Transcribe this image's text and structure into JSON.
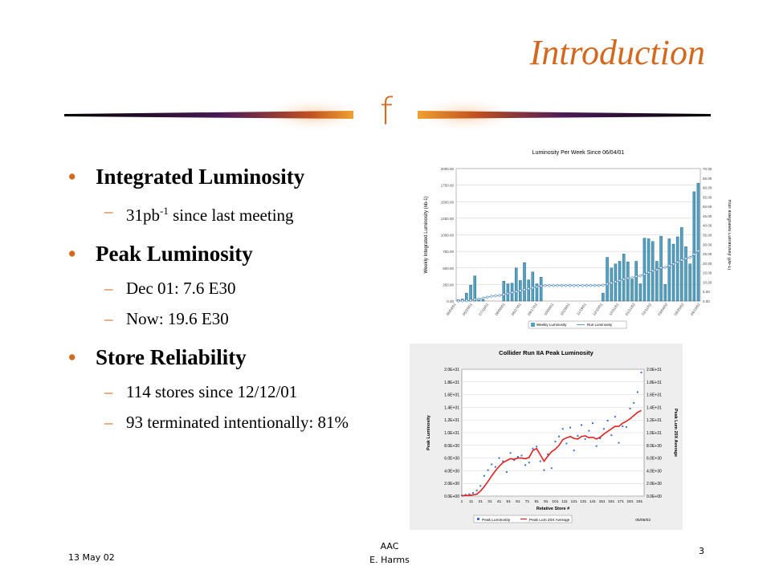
{
  "slide": {
    "title": "Introduction",
    "logo_glyph": "f",
    "bullets": [
      {
        "heading": "Integrated Luminosity",
        "subs": [
          {
            "pre": "31pb",
            "sup": "-1",
            "post": " since last meeting"
          }
        ]
      },
      {
        "heading": "Peak Luminosity",
        "subs": [
          {
            "pre": "Dec 01: 7.6 E30",
            "sup": "",
            "post": ""
          },
          {
            "pre": "Now: 19.6 E30",
            "sup": "",
            "post": ""
          }
        ]
      },
      {
        "heading": "Store Reliability",
        "subs": [
          {
            "pre": "114 stores since 12/12/01",
            "sup": "",
            "post": ""
          },
          {
            "pre": "93 terminated intentionally: 81%",
            "sup": "",
            "post": ""
          }
        ]
      }
    ],
    "footer": {
      "date": "13 May 02",
      "center_line1": "AAC",
      "center_line2": "E. Harms",
      "page": "3"
    },
    "colors": {
      "accent": "#d2691e",
      "bar_fill": "#4fa3c7",
      "run_line": "#3c7fbf",
      "peak_points": "#3b6fd6",
      "avg_line": "#e02020"
    }
  },
  "chart_data": [
    {
      "type": "bar",
      "title": "Luminosity Per Week Since 06/04/01",
      "ylabel": "Weekly Integrated Luminosity (nb-1)",
      "y2label": "Run Integrated Luminosity (pb-1)",
      "ylim": [
        0,
        2000
      ],
      "y2lim": [
        0,
        70
      ],
      "yticks": [
        "0.00",
        "250.00",
        "500.00",
        "750.00",
        "1000.00",
        "1250.00",
        "1500.00",
        "1750.00",
        "2000.00"
      ],
      "y2ticks": [
        "0.00",
        "5.00",
        "10.00",
        "15.00",
        "20.00",
        "25.00",
        "30.00",
        "35.00",
        "40.00",
        "45.00",
        "50.00",
        "55.00",
        "60.00",
        "65.00",
        "70.00"
      ],
      "xticks": [
        "06/04/01",
        "06/25/01",
        "07/16/01",
        "08/06/01",
        "08/27/01",
        "09/17/01",
        "10/08/01",
        "10/29/01",
        "11/19/01",
        "12/10/01",
        "12/31/01",
        "01/21/02",
        "02/11/02",
        "03/04/02",
        "03/25/02",
        "04/15/02"
      ],
      "legend": [
        "Weekly Luminosity",
        "Run Luminosity"
      ],
      "series": [
        {
          "name": "Weekly Luminosity",
          "values": [
            20,
            30,
            120,
            240,
            380,
            40,
            20,
            0,
            0,
            0,
            0,
            300,
            260,
            270,
            500,
            310,
            580,
            320,
            440,
            260,
            360,
            0,
            0,
            0,
            0,
            0,
            0,
            0,
            0,
            0,
            0,
            0,
            0,
            0,
            0,
            120,
            660,
            500,
            560,
            600,
            710,
            590,
            330,
            600,
            260,
            950,
            940,
            900,
            600,
            980,
            250,
            940,
            860,
            970,
            1110,
            820,
            560,
            1650,
            1780
          ]
        },
        {
          "name": "Run Luminosity",
          "values": [
            0.02,
            0.05,
            0.2,
            0.4,
            0.8,
            1.0,
            1.5,
            2.0,
            2.5,
            2.8,
            3.0,
            3.5,
            4.0,
            4.5,
            5.0,
            5.5,
            6.0,
            6.5,
            7.0,
            7.5,
            8.0,
            8.2,
            8.2,
            8.2,
            8.2,
            8.2,
            8.2,
            8.2,
            8.2,
            8.2,
            8.2,
            8.2,
            8.2,
            8.2,
            8.2,
            8.4,
            9.0,
            9.6,
            10.2,
            10.8,
            11.5,
            12.1,
            12.4,
            13.0,
            13.3,
            14.2,
            15.1,
            16.0,
            16.6,
            17.6,
            17.8,
            18.7,
            19.6,
            20.6,
            21.7,
            22.5,
            23.1,
            24.7,
            26.5
          ]
        }
      ]
    },
    {
      "type": "scatter",
      "title": "Collider Run IIA Peak Luminosity",
      "xlabel": "Relative Store #",
      "ylabel": "Peak Luminosity",
      "y2label": "Peak Lum 20X Average",
      "ylim": [
        0,
        2e+31
      ],
      "yticks": [
        "0.0E+00",
        "2.0E+30",
        "4.0E+30",
        "6.0E+30",
        "8.0E+30",
        "1.0E+31",
        "1.2E+31",
        "1.4E+31",
        "1.6E+31",
        "1.8E+31",
        "2.0E+31"
      ],
      "xticks": [
        "1",
        "11",
        "21",
        "31",
        "41",
        "51",
        "61",
        "71",
        "81",
        "91",
        "101",
        "111",
        "121",
        "131",
        "141",
        "151",
        "161",
        "171",
        "181",
        "191"
      ],
      "legend": [
        "Peak Luminosity",
        "Peak Lum 20X Average"
      ],
      "date_stamp": "05/06/02",
      "series": [
        {
          "name": "Peak Luminosity",
          "x": [
            1,
            5,
            9,
            13,
            17,
            21,
            25,
            29,
            33,
            37,
            41,
            45,
            49,
            53,
            57,
            61,
            65,
            69,
            73,
            77,
            81,
            85,
            89,
            93,
            97,
            101,
            105,
            109,
            113,
            117,
            121,
            125,
            129,
            133,
            137,
            141,
            145,
            149,
            153,
            157,
            161,
            165,
            169,
            173,
            177,
            181,
            185,
            189,
            193
          ],
          "values": [
            0.1,
            0.2,
            0.3,
            0.5,
            0.9,
            1.6,
            3.2,
            4.1,
            5.0,
            4.6,
            6.0,
            5.5,
            3.8,
            6.8,
            5.7,
            6.2,
            6.4,
            4.9,
            5.3,
            7.5,
            7.8,
            5.5,
            4.1,
            6.6,
            4.4,
            8.6,
            9.4,
            10.6,
            8.3,
            10.8,
            7.2,
            9.5,
            11.2,
            9.0,
            10.3,
            11.5,
            7.9,
            9.1,
            10.6,
            11.9,
            9.6,
            12.5,
            8.4,
            11.0,
            10.9,
            13.8,
            14.7,
            16.4,
            19.5
          ]
        },
        {
          "name": "Peak Lum 20X Average",
          "x": [
            1,
            5,
            9,
            13,
            17,
            21,
            25,
            29,
            33,
            37,
            41,
            45,
            49,
            53,
            57,
            61,
            65,
            69,
            73,
            77,
            81,
            85,
            89,
            93,
            97,
            101,
            105,
            109,
            113,
            117,
            121,
            125,
            129,
            133,
            137,
            141,
            145,
            149,
            153,
            157,
            161,
            165,
            169,
            173,
            177,
            181,
            185,
            189,
            193
          ],
          "values": [
            0.05,
            0.1,
            0.1,
            0.2,
            0.3,
            0.8,
            1.5,
            2.3,
            3.2,
            4.0,
            4.7,
            5.3,
            5.6,
            5.9,
            5.8,
            6.0,
            6.0,
            5.9,
            6.1,
            7.2,
            7.5,
            6.5,
            5.5,
            6.3,
            7.0,
            7.4,
            8.0,
            8.9,
            9.2,
            9.4,
            9.1,
            9.0,
            9.4,
            9.5,
            9.2,
            9.3,
            9.0,
            9.3,
            9.8,
            10.2,
            10.6,
            11.0,
            11.0,
            11.5,
            11.8,
            12.2,
            12.7,
            13.2,
            13.5
          ]
        }
      ]
    }
  ]
}
